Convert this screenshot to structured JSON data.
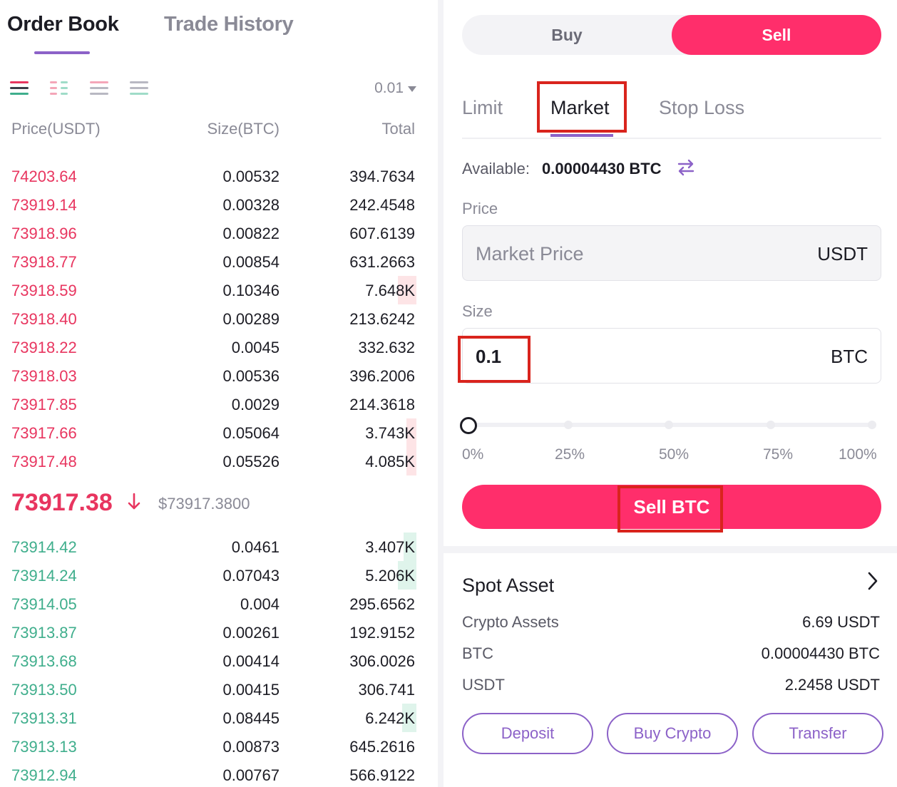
{
  "tabs": {
    "order_book": "Order Book",
    "trade_history": "Trade History"
  },
  "order_book": {
    "precision": "0.01",
    "columns": {
      "price": "Price(USDT)",
      "size": "Size(BTC)",
      "total": "Total"
    },
    "asks": [
      {
        "price": "74203.64",
        "size": "0.00532",
        "total": "394.7634"
      },
      {
        "price": "73919.14",
        "size": "0.00328",
        "total": "242.4548"
      },
      {
        "price": "73918.96",
        "size": "0.00822",
        "total": "607.6139"
      },
      {
        "price": "73918.77",
        "size": "0.00854",
        "total": "631.2663"
      },
      {
        "price": "73918.59",
        "size": "0.10346",
        "total": "7.648K"
      },
      {
        "price": "73918.40",
        "size": "0.00289",
        "total": "213.6242"
      },
      {
        "price": "73918.22",
        "size": "0.0045",
        "total": "332.632"
      },
      {
        "price": "73918.03",
        "size": "0.00536",
        "total": "396.2006"
      },
      {
        "price": "73917.85",
        "size": "0.0029",
        "total": "214.3618"
      },
      {
        "price": "73917.66",
        "size": "0.05064",
        "total": "3.743K"
      },
      {
        "price": "73917.48",
        "size": "0.05526",
        "total": "4.085K"
      }
    ],
    "last_price": "73917.38",
    "last_price_usd": "$73917.3800",
    "bids": [
      {
        "price": "73914.42",
        "size": "0.0461",
        "total": "3.407K"
      },
      {
        "price": "73914.24",
        "size": "0.07043",
        "total": "5.206K"
      },
      {
        "price": "73914.05",
        "size": "0.004",
        "total": "295.6562"
      },
      {
        "price": "73913.87",
        "size": "0.00261",
        "total": "192.9152"
      },
      {
        "price": "73913.68",
        "size": "0.00414",
        "total": "306.0026"
      },
      {
        "price": "73913.50",
        "size": "0.00415",
        "total": "306.741"
      },
      {
        "price": "73913.31",
        "size": "0.08445",
        "total": "6.242K"
      },
      {
        "price": "73913.13",
        "size": "0.00873",
        "total": "645.2616"
      },
      {
        "price": "73912.94",
        "size": "0.00767",
        "total": "566.9122"
      }
    ]
  },
  "trade": {
    "side_buy": "Buy",
    "side_sell": "Sell",
    "order_types": {
      "limit": "Limit",
      "market": "Market",
      "stop_loss": "Stop Loss"
    },
    "available_label": "Available:",
    "available_value": "0.00004430 BTC",
    "price_label": "Price",
    "price_placeholder": "Market Price",
    "price_unit": "USDT",
    "size_label": "Size",
    "size_value": "0.1",
    "size_unit": "BTC",
    "slider_percent": 0,
    "slider_labels": [
      "0%",
      "25%",
      "50%",
      "75%",
      "100%"
    ],
    "submit_label": "Sell BTC"
  },
  "spot_asset": {
    "title": "Spot Asset",
    "rows": [
      {
        "label": "Crypto Assets",
        "value": "6.69 USDT"
      },
      {
        "label": "BTC",
        "value": "0.00004430 BTC"
      },
      {
        "label": "USDT",
        "value": "2.2458 USDT"
      }
    ],
    "buttons": {
      "deposit": "Deposit",
      "buy_crypto": "Buy Crypto",
      "transfer": "Transfer"
    }
  },
  "colors": {
    "accent": "#8c62c8",
    "sell": "#ff2e6b",
    "ask": "#e8355f",
    "bid": "#3fae8c"
  }
}
